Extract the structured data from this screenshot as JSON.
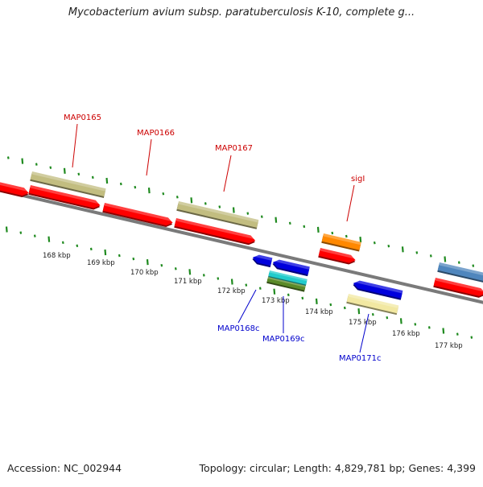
{
  "title": "Mycobacterium avium subsp. paratuberculosis K-10, complete g...",
  "footer": {
    "accession_label": "Accession:",
    "accession_value": "NC_002944",
    "topology_label": "Topology:",
    "topology_value": "circular",
    "length_label": "Length:",
    "length_value": "4,829,781 bp",
    "genes_label": "Genes:",
    "genes_value": "4,399"
  },
  "colors": {
    "forward_gene": "#ff0000",
    "reverse_gene": "#0000dd",
    "khaki_feature": "#c2bd80",
    "orange_feature": "#ff8800",
    "steel_blue_feature": "#4f86bd",
    "cyan_feature": "#22cccc",
    "olive_feature": "#5a8a28",
    "pale_yellow_feature": "#f2e8a2",
    "backbone": "#7a7a7a",
    "tick_marks": "#1f8a1f",
    "forward_label": "#cc0000",
    "reverse_label": "#0000cc"
  },
  "scale_ticks": [
    {
      "kbp": 168,
      "label": "168 kbp"
    },
    {
      "kbp": 169,
      "label": "169 kbp"
    },
    {
      "kbp": 170,
      "label": "170 kbp"
    },
    {
      "kbp": 171,
      "label": "171 kbp"
    },
    {
      "kbp": 172,
      "label": "172 kbp"
    },
    {
      "kbp": 173,
      "label": "173 kbp"
    },
    {
      "kbp": 174,
      "label": "174 kbp"
    },
    {
      "kbp": 175,
      "label": "175 kbp"
    },
    {
      "kbp": 176,
      "label": "176 kbp"
    },
    {
      "kbp": 177,
      "label": "177 kbp"
    }
  ],
  "gene_labels": [
    {
      "text": "MAP0165",
      "strand": "forward"
    },
    {
      "text": "MAP0166",
      "strand": "forward"
    },
    {
      "text": "MAP0167",
      "strand": "forward"
    },
    {
      "text": "sigI",
      "strand": "forward"
    },
    {
      "text": "MAP0168c",
      "strand": "reverse"
    },
    {
      "text": "MAP0169c",
      "strand": "reverse"
    },
    {
      "text": "MAP0171c",
      "strand": "reverse"
    }
  ]
}
